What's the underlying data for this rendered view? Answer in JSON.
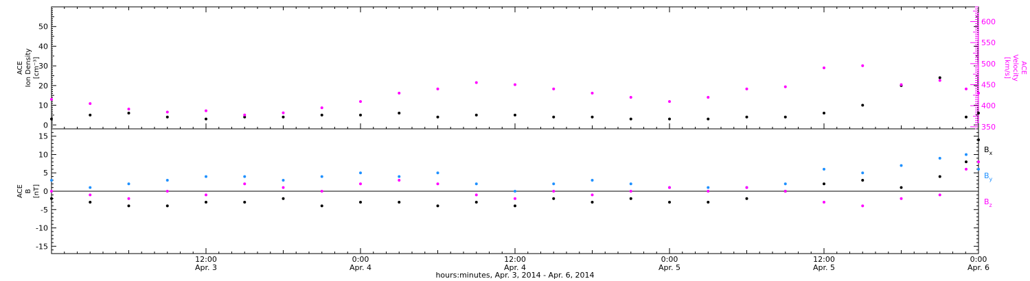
{
  "figure": {
    "xlabel": "hours:minutes, Apr.  3, 2014 - Apr.  6, 2014",
    "colors": {
      "axes": "#000000",
      "black": "#000000",
      "magenta": "#ff00ff",
      "blue": "#1e90ff"
    }
  },
  "chart_data": [
    {
      "type": "scatter",
      "panel": "top",
      "left_axis_label": [
        "ACE",
        "Ion Density",
        "[cm⁻³]"
      ],
      "right_axis_label": [
        "ACE",
        "Velocity",
        "[km/s]"
      ],
      "xlim": [
        2.0,
        8.0
      ],
      "ylim_left": [
        -2,
        60
      ],
      "ylim_right": [
        345,
        635
      ],
      "yticks_left": [
        0,
        10,
        20,
        30,
        40,
        50
      ],
      "yticks_right": [
        350,
        400,
        450,
        500,
        550,
        600
      ],
      "grid": false,
      "series": [
        {
          "axis": "left",
          "color": "#000000",
          "x": [
            2.0,
            2.25,
            2.5,
            2.75,
            3.0,
            3.25,
            3.5,
            3.75,
            4.0,
            4.25,
            4.5,
            4.75,
            5.0,
            5.25,
            5.5,
            5.75,
            6.0,
            6.25,
            6.5,
            6.75,
            7.0,
            7.25,
            7.5,
            7.75,
            7.92,
            8.0
          ],
          "y": [
            3,
            5,
            6,
            4,
            3,
            4,
            4,
            5,
            5,
            6,
            4,
            5,
            5,
            4,
            4,
            3,
            3,
            3,
            4,
            4,
            6,
            10,
            20,
            24,
            4,
            6
          ]
        },
        {
          "axis": "right",
          "color": "#ff00ff",
          "x": [
            2.0,
            2.25,
            2.5,
            2.75,
            3.0,
            3.25,
            3.5,
            3.75,
            4.0,
            4.25,
            4.5,
            4.75,
            5.0,
            5.25,
            5.5,
            5.75,
            6.0,
            6.25,
            6.5,
            6.75,
            7.0,
            7.25,
            7.5,
            7.75,
            7.92,
            8.0
          ],
          "y": [
            415,
            405,
            392,
            385,
            388,
            378,
            383,
            395,
            410,
            430,
            440,
            455,
            450,
            440,
            430,
            420,
            410,
            420,
            440,
            445,
            490,
            495,
            450,
            460,
            440,
            430
          ]
        }
      ]
    },
    {
      "type": "scatter",
      "panel": "bottom",
      "left_axis_label": [
        "ACE",
        "B",
        "[nT]"
      ],
      "xlim": [
        2.0,
        8.0
      ],
      "ylim": [
        -17,
        17
      ],
      "yticks": [
        -15,
        -10,
        -5,
        0,
        5,
        10,
        15
      ],
      "zero_line": true,
      "xticks": [
        {
          "x": 3.0,
          "time": "12:00",
          "date": "Apr. 3"
        },
        {
          "x": 4.0,
          "time": "0:00",
          "date": "Apr. 4"
        },
        {
          "x": 5.0,
          "time": "12:00",
          "date": "Apr. 4"
        },
        {
          "x": 6.0,
          "time": "0:00",
          "date": "Apr. 5"
        },
        {
          "x": 7.0,
          "time": "12:00",
          "date": "Apr. 5"
        },
        {
          "x": 8.0,
          "time": "0:00",
          "date": "Apr. 6"
        }
      ],
      "series": [
        {
          "name": "Bx",
          "color": "#000000",
          "x": [
            2.0,
            2.25,
            2.5,
            2.75,
            3.0,
            3.25,
            3.5,
            3.75,
            4.0,
            4.25,
            4.5,
            4.75,
            5.0,
            5.25,
            5.5,
            5.75,
            6.0,
            6.25,
            6.5,
            6.75,
            7.0,
            7.25,
            7.5,
            7.75,
            7.92,
            8.0
          ],
          "y": [
            -2,
            -3,
            -4,
            -4,
            -3,
            -3,
            -2,
            -4,
            -3,
            -3,
            -4,
            -3,
            -4,
            -2,
            -3,
            -2,
            -3,
            -3,
            -2,
            0,
            2,
            3,
            1,
            4,
            8,
            14
          ]
        },
        {
          "name": "By",
          "color": "#1e90ff",
          "x": [
            2.0,
            2.25,
            2.5,
            2.75,
            3.0,
            3.25,
            3.5,
            3.75,
            4.0,
            4.25,
            4.5,
            4.75,
            5.0,
            5.25,
            5.5,
            5.75,
            6.0,
            6.25,
            6.5,
            6.75,
            7.0,
            7.25,
            7.5,
            7.75,
            7.92,
            8.0
          ],
          "y": [
            3,
            1,
            2,
            3,
            4,
            4,
            3,
            4,
            5,
            4,
            5,
            2,
            0,
            2,
            3,
            2,
            1,
            1,
            1,
            2,
            6,
            5,
            7,
            9,
            10,
            6
          ]
        },
        {
          "name": "Bz",
          "color": "#ff00ff",
          "x": [
            2.0,
            2.25,
            2.5,
            2.75,
            3.0,
            3.25,
            3.5,
            3.75,
            4.0,
            4.25,
            4.5,
            4.75,
            5.0,
            5.25,
            5.5,
            5.75,
            6.0,
            6.25,
            6.5,
            6.75,
            7.0,
            7.25,
            7.5,
            7.75,
            7.92,
            8.0
          ],
          "y": [
            0,
            -1,
            -2,
            0,
            -1,
            2,
            1,
            0,
            2,
            3,
            2,
            -1,
            -2,
            0,
            -1,
            0,
            1,
            0,
            1,
            0,
            -3,
            -4,
            -2,
            -1,
            6,
            8
          ]
        }
      ],
      "legend": [
        {
          "label": "B",
          "sub": "x",
          "color": "#000000"
        },
        {
          "label": "B",
          "sub": "y",
          "color": "#1e90ff"
        },
        {
          "label": "B",
          "sub": "z",
          "color": "#ff00ff"
        }
      ]
    }
  ]
}
